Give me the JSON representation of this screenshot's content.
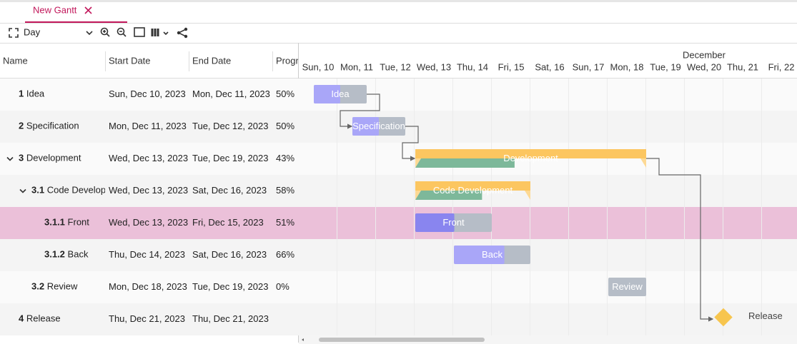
{
  "tab": {
    "title": "New Gantt"
  },
  "toolbar": {
    "view": "Day"
  },
  "columns": [
    "Name",
    "Start Date",
    "End Date",
    "Progress"
  ],
  "timeline": {
    "month": "December",
    "days": [
      "Sun, 10",
      "Mon, 11",
      "Tue, 12",
      "Wed, 13",
      "Thu, 14",
      "Fri, 15",
      "Sat, 16",
      "Sun, 17",
      "Mon, 18",
      "Tue, 19",
      "Wed, 20",
      "Thu, 21",
      "Fri, 22"
    ]
  },
  "tasks": [
    {
      "wbs": "1",
      "name": "Idea",
      "start": "Sun, Dec 10, 2023",
      "end": "Mon, Dec 11, 2023",
      "progress": 50,
      "progress_label": "50%"
    },
    {
      "wbs": "2",
      "name": "Specification",
      "start": "Mon, Dec 11, 2023",
      "end": "Tue, Dec 12, 2023",
      "progress": 50,
      "progress_label": "50%"
    },
    {
      "wbs": "3",
      "name": "Development",
      "start": "Wed, Dec 13, 2023",
      "end": "Tue, Dec 19, 2023",
      "progress": 43,
      "progress_label": "43%"
    },
    {
      "wbs": "3.1",
      "name": "Code Development",
      "start": "Wed, Dec 13, 2023",
      "end": "Sat, Dec 16, 2023",
      "progress": 58,
      "progress_label": "58%"
    },
    {
      "wbs": "3.1.1",
      "name": "Front",
      "start": "Wed, Dec 13, 2023",
      "end": "Fri, Dec 15, 2023",
      "progress": 51,
      "progress_label": "51%"
    },
    {
      "wbs": "3.1.2",
      "name": "Back",
      "start": "Thu, Dec 14, 2023",
      "end": "Sat, Dec 16, 2023",
      "progress": 66,
      "progress_label": "66%"
    },
    {
      "wbs": "3.2",
      "name": "Review",
      "start": "Mon, Dec 18, 2023",
      "end": "Tue, Dec 19, 2023",
      "progress": 0,
      "progress_label": "0%"
    },
    {
      "wbs": "4",
      "name": "Release",
      "start": "Thu, Dec 21, 2023",
      "end": "Thu, Dec 21, 2023"
    }
  ]
}
